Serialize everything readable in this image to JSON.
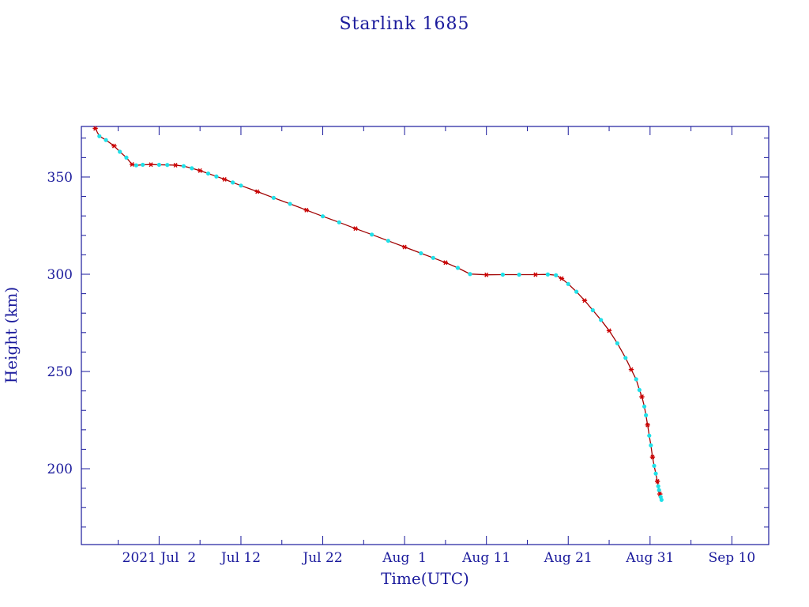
{
  "chart_data": {
    "type": "line",
    "title": "Starlink 1685",
    "xlabel": "Time(UTC)",
    "ylabel": "Height (km)",
    "x_tick_labels": [
      "2021 Jul  2",
      "Jul 12",
      "Jul 22",
      "Aug  1",
      "Aug 11",
      "Aug 21",
      "Aug 31",
      "Sep 10"
    ],
    "x_ticks_days": [
      0,
      10,
      20,
      30,
      40,
      50,
      60,
      70
    ],
    "x_range_days": [
      -9.5,
      74.5
    ],
    "y_ticks": [
      200,
      250,
      300,
      350
    ],
    "ylim": [
      161,
      376
    ],
    "grid": false,
    "colors": {
      "axis": "#1a1a9c",
      "line": "#a00000",
      "marker_red": "#cc0000",
      "marker_cyan": "#20e0e8"
    },
    "series": [
      {
        "x": [
          -7.8,
          -7.3,
          -6.5,
          -5.5,
          -4.8,
          -4.0,
          -3.3,
          -2.8,
          -2.0,
          -1.0,
          0.0,
          1.0,
          2.0,
          3.0,
          4.0,
          5.0,
          6.0,
          7.0,
          8.0,
          9.0,
          10.0,
          12.0,
          14.0,
          16.0,
          18.0,
          20.0,
          22.0,
          24.0,
          26.0,
          28.0,
          30.0,
          32.0,
          33.5,
          35.0,
          36.5,
          38.0,
          40.0,
          42.0,
          44.0,
          46.0,
          47.5,
          48.5,
          49.2,
          50.0,
          51.0,
          52.0,
          53.0,
          54.0,
          55.0,
          56.0,
          57.0,
          57.7,
          58.3,
          58.7,
          59.0,
          59.3,
          59.5,
          59.7,
          59.9,
          60.1,
          60.3,
          60.5,
          60.7,
          60.9,
          61.0,
          61.1,
          61.2,
          61.3,
          61.4
        ],
        "y": [
          375,
          371,
          369,
          366,
          363,
          360,
          356.5,
          356,
          356.3,
          356.4,
          356.3,
          356.2,
          356.1,
          355.6,
          354.5,
          353.3,
          351.8,
          350.3,
          348.8,
          347.2,
          345.6,
          342.5,
          339.3,
          336.2,
          333.0,
          329.8,
          326.7,
          323.5,
          320.4,
          317.2,
          314.0,
          310.8,
          308.4,
          306.0,
          303.3,
          300.1,
          299.7,
          299.8,
          299.8,
          299.8,
          299.9,
          299.5,
          297.8,
          295.0,
          291.0,
          286.5,
          281.5,
          276.5,
          271.0,
          264.5,
          257.0,
          251.0,
          246.0,
          240.5,
          237.0,
          232.0,
          227.5,
          222.5,
          217.0,
          212.0,
          206.0,
          201.5,
          197.5,
          193.5,
          191.0,
          189.0,
          187.0,
          185.5,
          184.0
        ]
      }
    ]
  }
}
